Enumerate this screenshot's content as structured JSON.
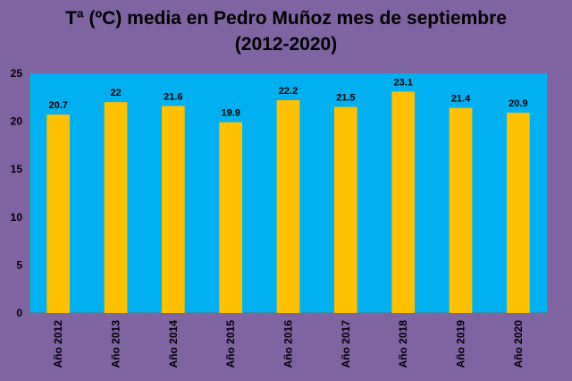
{
  "chart_data": {
    "type": "bar",
    "title_line1": "Tª (ºC) media en Pedro Muñoz mes de septiembre",
    "title_line2": "(2012-2020)",
    "xlabel": "",
    "ylabel": "",
    "categories": [
      "Año 2012",
      "Año 2013",
      "Año 2014",
      "Año 2015",
      "Año 2016",
      "Año 2017",
      "Año 2018",
      "Año 2019",
      "Año 2020"
    ],
    "values": [
      20.7,
      22,
      21.6,
      19.9,
      22.2,
      21.5,
      23.1,
      21.4,
      20.9
    ],
    "value_labels": [
      "20.7",
      "22",
      "21.6",
      "19.9",
      "22.2",
      "21.5",
      "23.1",
      "21.4",
      "20.9"
    ],
    "ylim": [
      0,
      25
    ],
    "yticks": [
      0,
      5,
      10,
      15,
      20,
      25
    ],
    "grid": false,
    "legend": "none",
    "colors": {
      "page_background": "#8064a2",
      "plot_background": "#00b0f0",
      "bar": "#ffc000"
    }
  }
}
